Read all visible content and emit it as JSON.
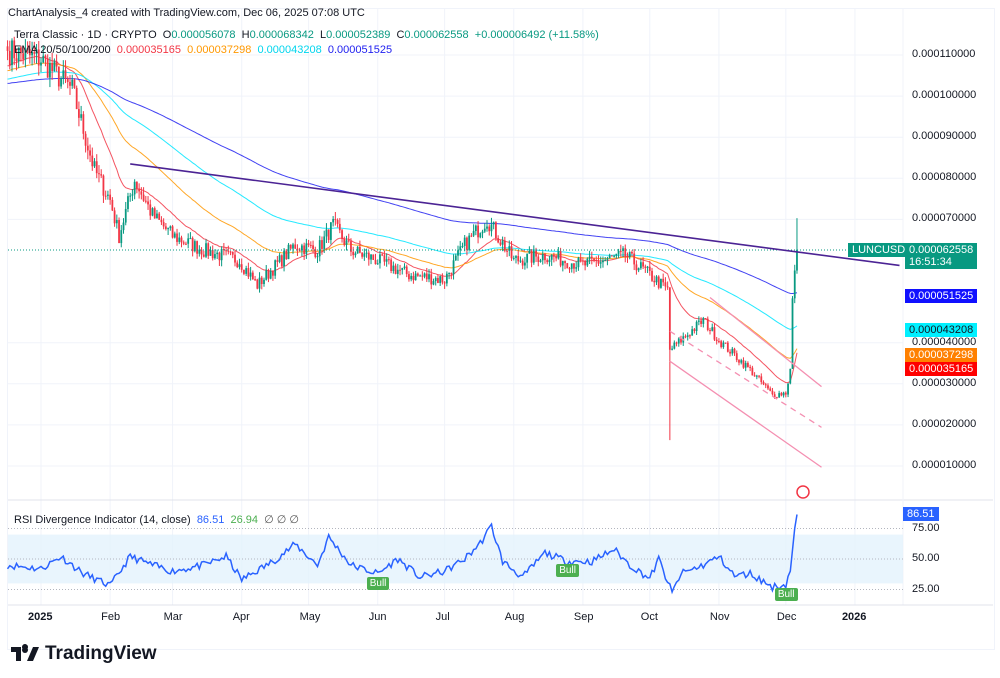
{
  "header": {
    "created": "ChartAnalysis_4 created with TradingView.com, Dec 06, 2025 07:08 UTC",
    "symbol": "Terra Classic · 1D · CRYPTO",
    "o_label": "O",
    "o": "0.000056078",
    "h_label": "H",
    "h": "0.000068342",
    "l_label": "L",
    "l": "0.000052389",
    "c_label": "C",
    "c": "0.000062558",
    "change": "+0.000006492 (+11.58%)"
  },
  "ema": {
    "label": "EMA 20/50/100/200",
    "v20": "0.000035165",
    "v50": "0.000037298",
    "v100": "0.000043208",
    "v200": "0.000051525"
  },
  "colors": {
    "up": "#089981",
    "down": "#f23645",
    "ema20": "#f23645",
    "ema50": "#ff9800",
    "ema100": "#00e5ff",
    "ema200": "#2121f0",
    "trend": "#4b2394",
    "channel": "#f48fb1",
    "rsi": "#2962ff",
    "bull": "#4caf50"
  },
  "price_tag": {
    "symbol": "LUNCUSD",
    "price": "0.000062558",
    "countdown": "16:51:34"
  },
  "rsi": {
    "label": "RSI Divergence Indicator (14, close)",
    "value": "86.51",
    "value2": "26.94",
    "flags": "∅ ∅ ∅",
    "bull_label": "Bull"
  },
  "logo": {
    "text": "TradingView"
  },
  "chart_data": [
    {
      "type": "candlestick",
      "title": "Terra Classic · 1D · CRYPTO",
      "y_ticks": [
        "0.000110000",
        "0.000100000",
        "0.000090000",
        "0.000080000",
        "0.000070000",
        "0.000040000",
        "0.000030000",
        "0.000020000",
        "0.000010000"
      ],
      "ylim": [
        5e-06,
        0.000118
      ],
      "x_ticks": [
        "2025",
        "Feb",
        "Mar",
        "Apr",
        "May",
        "Jun",
        "Jul",
        "Aug",
        "Sep",
        "Oct",
        "Nov",
        "Dec",
        "2026"
      ],
      "x_tick_dates": [
        "2025-01-01",
        "2025-02-01",
        "2025-03-01",
        "2025-04-01",
        "2025-05-01",
        "2025-06-01",
        "2025-07-01",
        "2025-08-01",
        "2025-09-01",
        "2025-10-01",
        "2025-11-01",
        "2025-12-01",
        "2026-01-01"
      ],
      "close_path": [
        [
          "2024-12-17",
          0.000111
        ],
        [
          "2025-01-01",
          0.000109
        ],
        [
          "2025-01-15",
          0.0001015
        ],
        [
          "2025-01-25",
          8.2e-05
        ],
        [
          "2025-02-01",
          7.47e-05
        ],
        [
          "2025-02-05",
          6.6e-05
        ],
        [
          "2025-02-12",
          7.96e-05
        ],
        [
          "2025-02-20",
          7.1e-05
        ],
        [
          "2025-03-01",
          6.6e-05
        ],
        [
          "2025-03-15",
          6.25e-05
        ],
        [
          "2025-03-31",
          6e-05
        ],
        [
          "2025-04-08",
          5.4e-05
        ],
        [
          "2025-04-25",
          6.38e-05
        ],
        [
          "2025-05-05",
          6.25e-05
        ],
        [
          "2025-05-12",
          6.86e-05
        ],
        [
          "2025-05-20",
          6.25e-05
        ],
        [
          "2025-06-01",
          6e-05
        ],
        [
          "2025-06-15",
          5.65e-05
        ],
        [
          "2025-07-01",
          5.53e-05
        ],
        [
          "2025-07-10",
          6.38e-05
        ],
        [
          "2025-07-20",
          7e-05
        ],
        [
          "2025-08-01",
          6e-05
        ],
        [
          "2025-08-15",
          6.13e-05
        ],
        [
          "2025-09-01",
          5.89e-05
        ],
        [
          "2025-09-20",
          6.13e-05
        ],
        [
          "2025-10-01",
          5.65e-05
        ],
        [
          "2025-10-09",
          5.28e-05
        ],
        [
          "2025-10-10",
          3.82e-05
        ],
        [
          "2025-10-15",
          4.06e-05
        ],
        [
          "2025-10-25",
          4.55e-05
        ],
        [
          "2025-11-01",
          4.06e-05
        ],
        [
          "2025-11-15",
          3.34e-05
        ],
        [
          "2025-11-25",
          2.73e-05
        ],
        [
          "2025-12-01",
          2.78e-05
        ],
        [
          "2025-12-03",
          3.34e-05
        ],
        [
          "2025-12-04",
          5.04e-05
        ],
        [
          "2025-12-06",
          6.26e-05
        ]
      ],
      "ema_series": [
        {
          "name": "EMA 20",
          "last": 3.5165e-05
        },
        {
          "name": "EMA 50",
          "last": 3.7298e-05
        },
        {
          "name": "EMA 100",
          "last": 4.3208e-05
        },
        {
          "name": "EMA 200",
          "last": 5.1525e-05
        }
      ],
      "trendlines": [
        {
          "kind": "resistance",
          "from": [
            "2025-02-10",
            8.35e-05
          ],
          "to": [
            "2025-12-17",
            6.05e-05
          ]
        },
        {
          "kind": "channel-dashed",
          "from": [
            "2025-10-10",
            4.28e-05
          ],
          "to": [
            "2025-12-17",
            1.94e-05
          ]
        },
        {
          "kind": "channel-solid",
          "from": [
            "2025-10-10",
            3.55e-05
          ],
          "to": [
            "2025-12-17",
            9.7e-06
          ]
        },
        {
          "kind": "channel-upper",
          "from": [
            "2025-10-28",
            5.1e-05
          ],
          "to": [
            "2025-12-17",
            2.93e-05
          ]
        }
      ]
    },
    {
      "type": "line",
      "title": "RSI Divergence Indicator (14, close)",
      "y_ticks": [
        "75.00",
        "50.00",
        "25.00"
      ],
      "ylim": [
        10,
        92
      ],
      "band": [
        30,
        70
      ],
      "points": [
        [
          "2024-12-17",
          45
        ],
        [
          "2025-01-01",
          42
        ],
        [
          "2025-01-10",
          52
        ],
        [
          "2025-01-20",
          38
        ],
        [
          "2025-02-01",
          28
        ],
        [
          "2025-02-10",
          52
        ],
        [
          "2025-02-20",
          45
        ],
        [
          "2025-03-01",
          40
        ],
        [
          "2025-03-15",
          45
        ],
        [
          "2025-03-25",
          52
        ],
        [
          "2025-04-01",
          33
        ],
        [
          "2025-04-15",
          48
        ],
        [
          "2025-04-25",
          62
        ],
        [
          "2025-05-05",
          45
        ],
        [
          "2025-05-10",
          68
        ],
        [
          "2025-05-20",
          45
        ],
        [
          "2025-06-01",
          38
        ],
        [
          "2025-06-10",
          50
        ],
        [
          "2025-06-20",
          35
        ],
        [
          "2025-07-01",
          40
        ],
        [
          "2025-07-10",
          50
        ],
        [
          "2025-07-17",
          63
        ],
        [
          "2025-07-22",
          77
        ],
        [
          "2025-07-27",
          48
        ],
        [
          "2025-08-05",
          35
        ],
        [
          "2025-08-15",
          55
        ],
        [
          "2025-08-25",
          48
        ],
        [
          "2025-09-05",
          48
        ],
        [
          "2025-09-15",
          58
        ],
        [
          "2025-09-22",
          45
        ],
        [
          "2025-10-01",
          34
        ],
        [
          "2025-10-05",
          50
        ],
        [
          "2025-10-11",
          22
        ],
        [
          "2025-10-15",
          38
        ],
        [
          "2025-10-25",
          45
        ],
        [
          "2025-11-01",
          52
        ],
        [
          "2025-11-08",
          36
        ],
        [
          "2025-11-15",
          38
        ],
        [
          "2025-11-25",
          27
        ],
        [
          "2025-12-01",
          29
        ],
        [
          "2025-12-03",
          40
        ],
        [
          "2025-12-05",
          75
        ],
        [
          "2025-12-06",
          86.51
        ]
      ],
      "bull_signals": [
        "2025-06-01",
        "2025-08-25",
        "2025-12-01"
      ]
    }
  ]
}
